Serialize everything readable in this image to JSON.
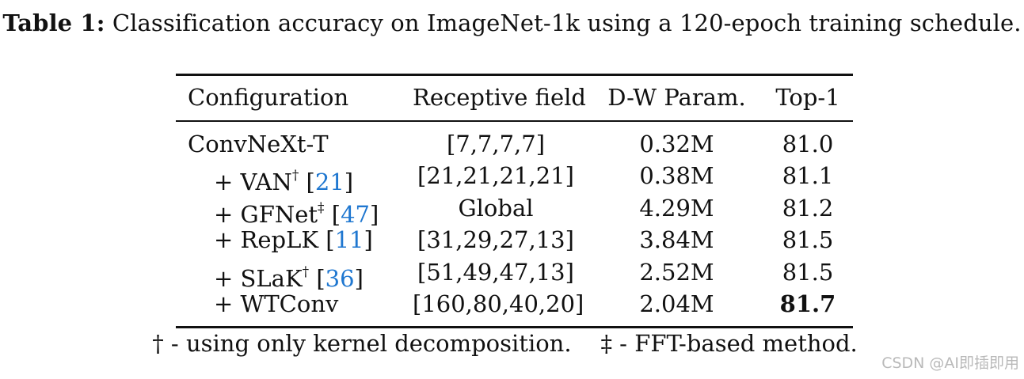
{
  "caption": {
    "lead": "Table 1:",
    "text": "Classification accuracy on ImageNet-1k using a 120-epoch training schedule."
  },
  "table": {
    "headers": [
      "Configuration",
      "Receptive field",
      "D-W Param.",
      "Top-1"
    ],
    "rows": [
      {
        "prefix": "",
        "name": "ConvNeXt-T",
        "mark": "",
        "ref": "",
        "rf": "[7,7,7,7]",
        "dw": "0.32M",
        "top1": "81.0"
      },
      {
        "prefix": "+ ",
        "name": "VAN",
        "mark": "†",
        "ref": "21",
        "rf": "[21,21,21,21]",
        "dw": "0.38M",
        "top1": "81.1"
      },
      {
        "prefix": "+ ",
        "name": "GFNet",
        "mark": "‡",
        "ref": "47",
        "rf": "Global",
        "dw": "4.29M",
        "top1": "81.2"
      },
      {
        "prefix": "+ ",
        "name": "RepLK",
        "mark": "",
        "ref": "11",
        "rf": "[31,29,27,13]",
        "dw": "3.84M",
        "top1": "81.5"
      },
      {
        "prefix": "+ ",
        "name": "SLaK",
        "mark": "†",
        "ref": "36",
        "rf": "[51,49,47,13]",
        "dw": "2.52M",
        "top1": "81.5"
      },
      {
        "prefix": "+ ",
        "name": "WTConv",
        "mark": "",
        "ref": "",
        "rf": "[160,80,40,20]",
        "dw": "2.04M",
        "top1": "81.7"
      }
    ],
    "bold_top1_row": 5
  },
  "footnote": {
    "dagger": "† - using only kernel decomposition.",
    "ddagger": "‡ - FFT-based method."
  },
  "watermark": "CSDN @AI即插即用"
}
